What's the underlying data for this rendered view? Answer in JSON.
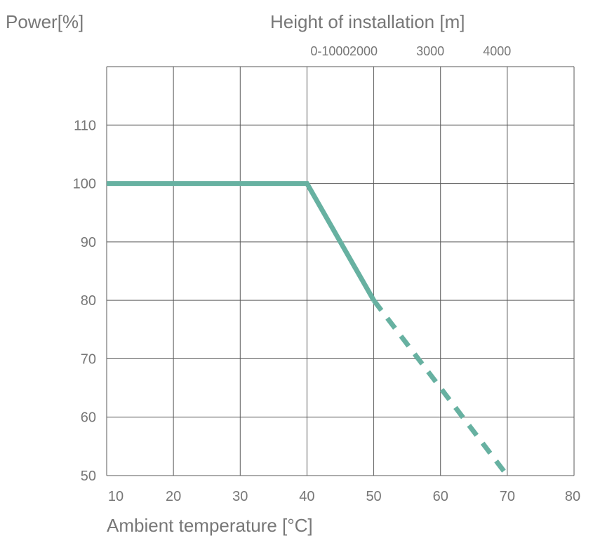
{
  "chart_data": {
    "type": "line",
    "title": "",
    "ylabel": "Power[%]",
    "xlabel": "Ambient temperature [°C]",
    "secondary_xlabel": "Height of installation [m]",
    "xlim": [
      10,
      80
    ],
    "ylim": [
      50,
      120
    ],
    "x_ticks": [
      "10",
      "20",
      "30",
      "40",
      "50",
      "60",
      "70",
      "80"
    ],
    "y_ticks": [
      "50",
      "60",
      "70",
      "80",
      "90",
      "100",
      "110"
    ],
    "secondary_x_ticks": [
      {
        "label": "0-1000",
        "x": 40
      },
      {
        "label": "2000",
        "x": 45
      },
      {
        "label": "3000",
        "x": 55
      },
      {
        "label": "4000",
        "x": 65
      }
    ],
    "grid": true,
    "series": [
      {
        "style": "solid",
        "x": [
          10,
          40,
          50
        ],
        "y": [
          100,
          100,
          80
        ]
      },
      {
        "style": "dashed",
        "x": [
          50,
          70
        ],
        "y": [
          80,
          50
        ]
      }
    ],
    "colors": {
      "line": "#67b1a1",
      "grid": "#5a5a5a",
      "text": "#777777"
    }
  }
}
